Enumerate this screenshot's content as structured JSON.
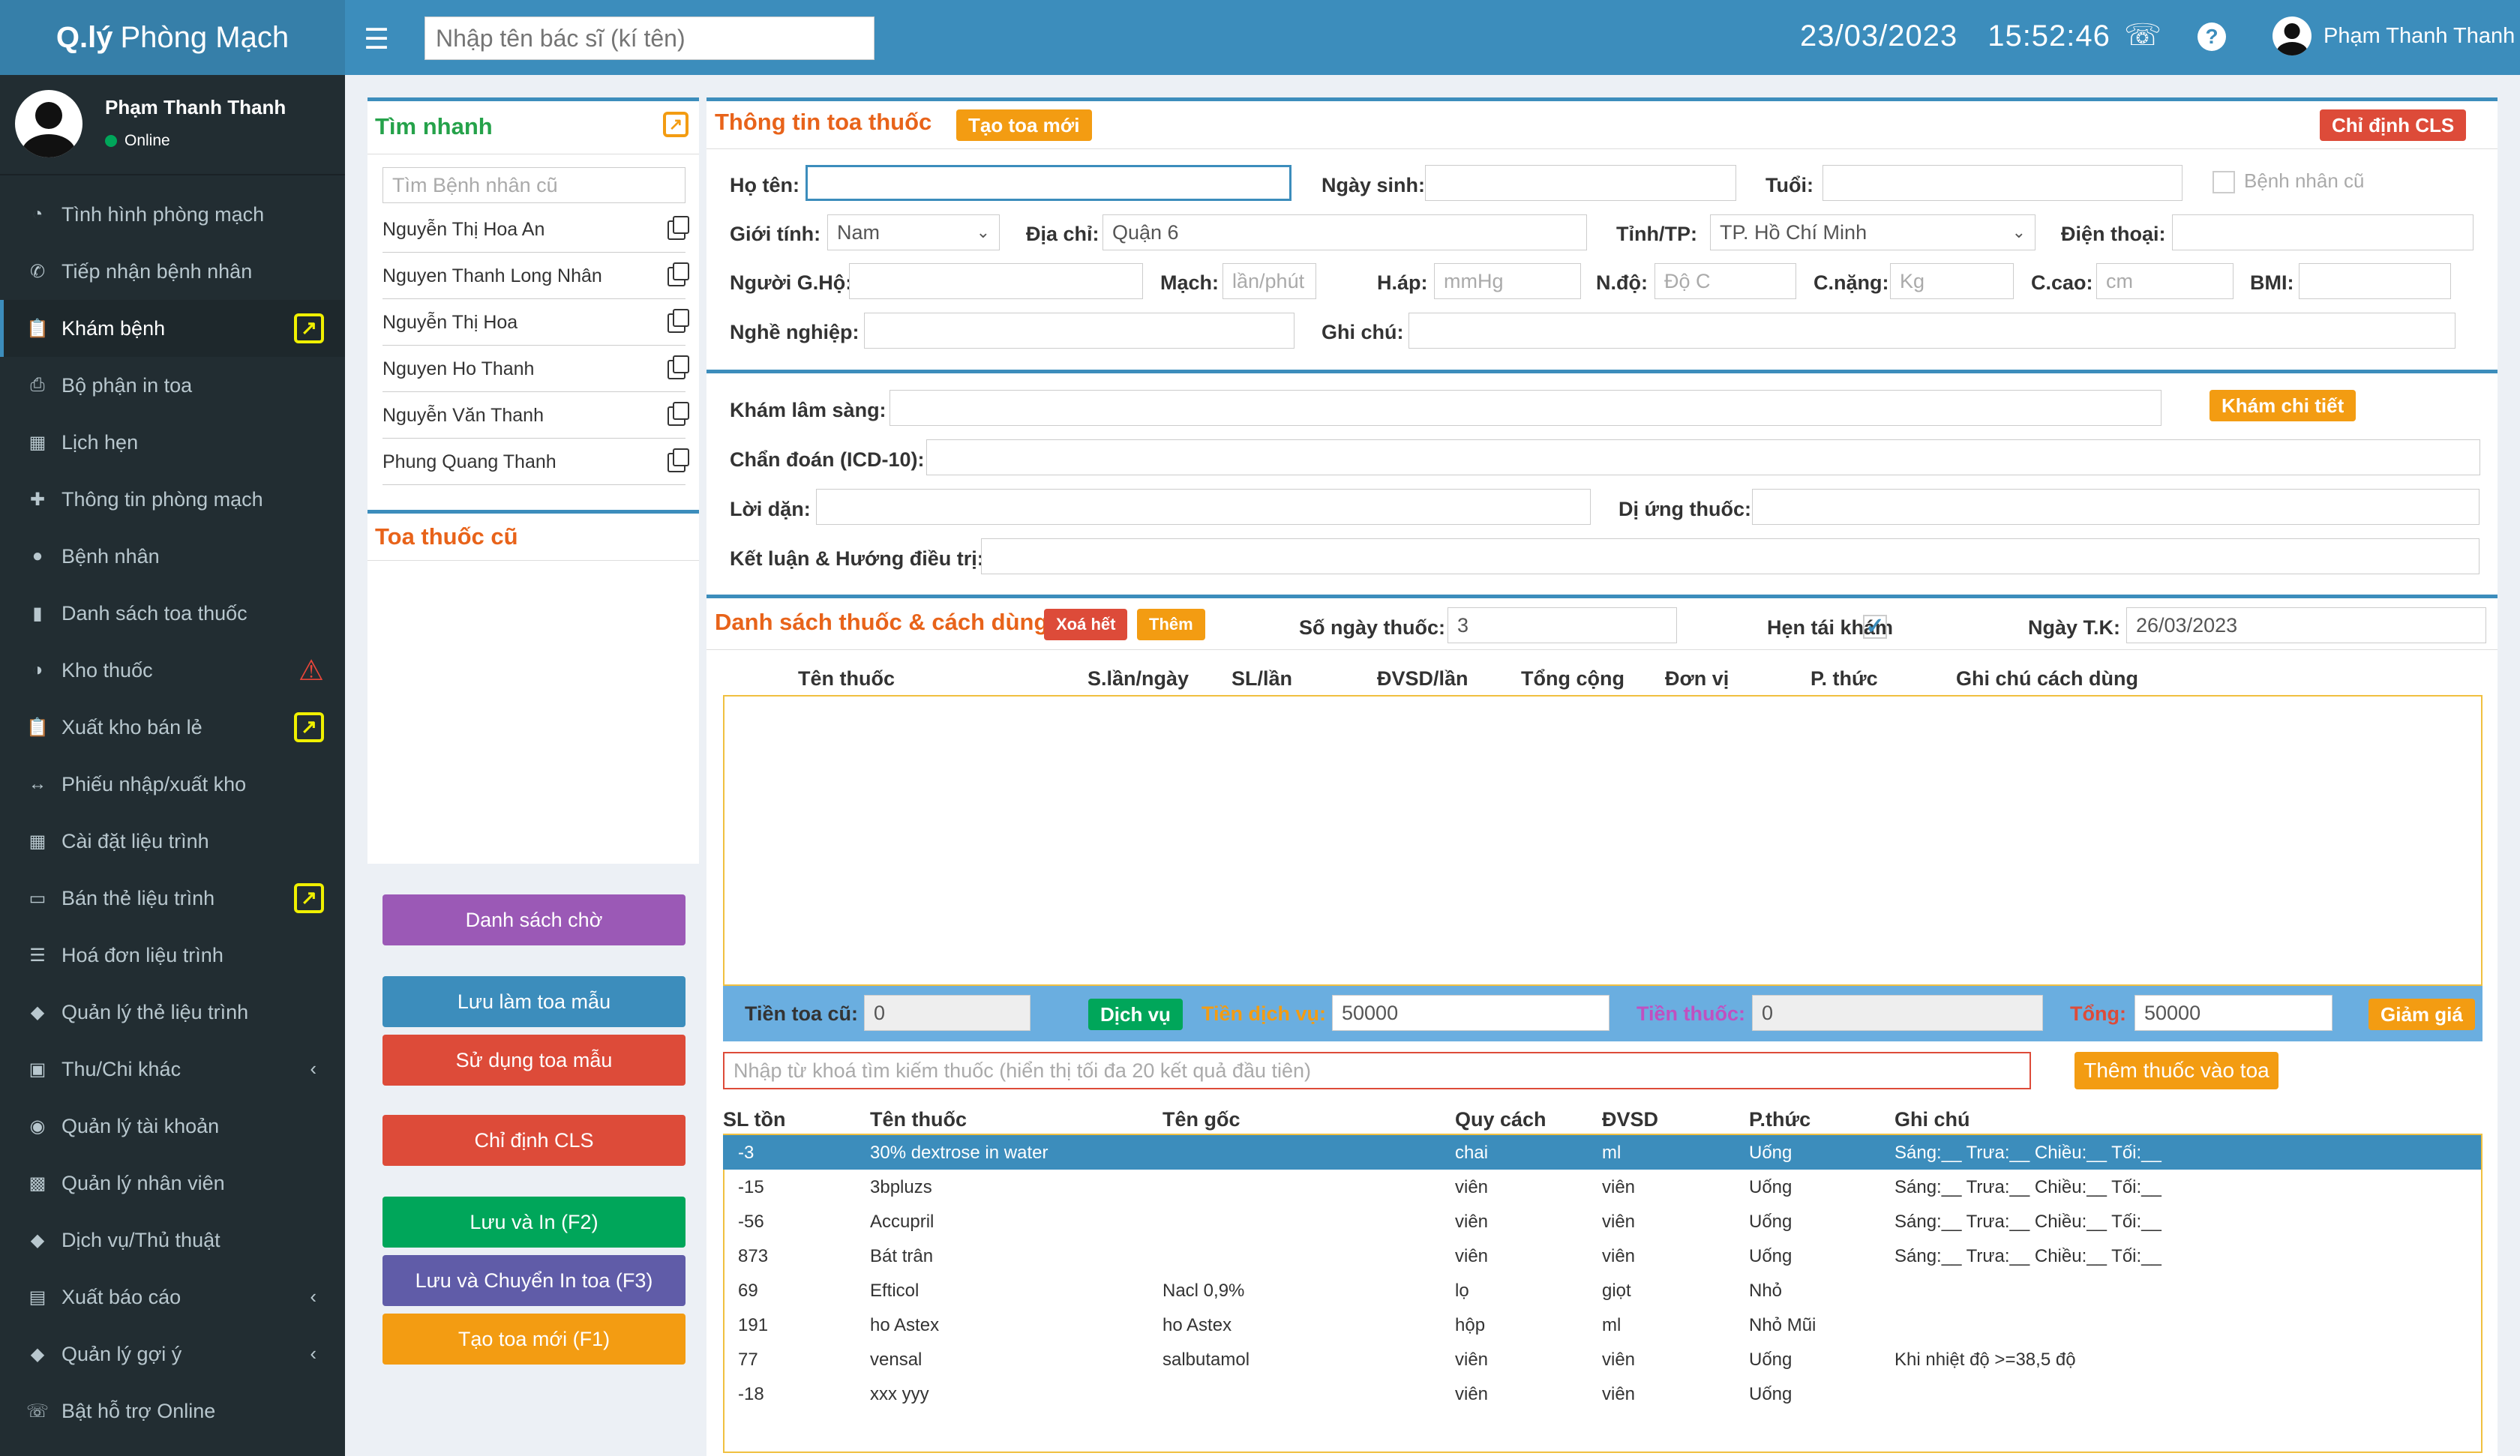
{
  "app": {
    "logo_bold": "Q.lý",
    "logo_rest": "Phòng Mạch"
  },
  "header": {
    "doctor_search_placeholder": "Nhập tên bác sĩ (kí tên)",
    "date": "23/03/2023",
    "time": "15:52:46",
    "user_name": "Phạm Thanh Thanh"
  },
  "sidebar": {
    "user_name": "Phạm Thanh Thanh",
    "status": "Online",
    "items": [
      {
        "label": "Tình hình phòng mạch",
        "icon": "dashboard-icon"
      },
      {
        "label": "Tiếp nhận bệnh nhân",
        "icon": "reception-icon"
      },
      {
        "label": "Khám bệnh",
        "icon": "clipboard-icon"
      },
      {
        "label": "Bộ phận in toa",
        "icon": "print-icon"
      },
      {
        "label": "Lịch hẹn",
        "icon": "calendar-icon"
      },
      {
        "label": "Thông tin phòng mạch",
        "icon": "plus-icon"
      },
      {
        "label": "Bệnh nhân",
        "icon": "user-icon"
      },
      {
        "label": "Danh sách toa thuốc",
        "icon": "file-icon"
      },
      {
        "label": "Kho thuốc",
        "icon": "pills-icon"
      },
      {
        "label": "Xuất kho bán lẻ",
        "icon": "clipboard-icon"
      },
      {
        "label": "Phiếu nhập/xuất kho",
        "icon": "arrows-icon"
      },
      {
        "label": "Cài đặt liệu trình",
        "icon": "grid-icon"
      },
      {
        "label": "Bán thẻ liệu trình",
        "icon": "card-icon"
      },
      {
        "label": "Hoá đơn liệu trình",
        "icon": "list-icon"
      },
      {
        "label": "Quản lý thẻ liệu trình",
        "icon": "tag-icon"
      },
      {
        "label": "Thu/Chi khác",
        "icon": "money-icon"
      },
      {
        "label": "Quản lý tài khoản",
        "icon": "users-icon"
      },
      {
        "label": "Quản lý nhân viên",
        "icon": "briefcase-icon"
      },
      {
        "label": "Dịch vụ/Thủ thuật",
        "icon": "tag-icon"
      },
      {
        "label": "Xuất báo cáo",
        "icon": "excel-icon"
      },
      {
        "label": "Quản lý gợi ý",
        "icon": "tag-icon"
      },
      {
        "label": "Bật hỗ trợ Online",
        "icon": "phone-icon"
      }
    ]
  },
  "quick": {
    "title": "Tìm nhanh",
    "search_placeholder": "Tìm Bệnh nhân cũ",
    "patients": [
      "Nguyễn Thị Hoa An",
      "Nguyen Thanh Long Nhân",
      "Nguyễn Thị Hoa",
      "Nguyen Ho Thanh",
      "Nguyễn Văn Thanh",
      "Phung Quang Thanh"
    ],
    "old_rx_title": "Toa thuốc cũ"
  },
  "actions": {
    "waiting_list": "Danh sách chờ",
    "save_template": "Lưu làm toa mẫu",
    "use_template": "Sử dụng toa mẫu",
    "cls": "Chỉ định CLS",
    "save_print": "Lưu và In (F2)",
    "save_transfer": "Lưu và Chuyển In toa (F3)",
    "new_rx": "Tạo toa mới (F1)"
  },
  "rx_info": {
    "title": "Thông tin toa thuốc",
    "new_button": "Tạo toa mới",
    "cls_button": "Chỉ định CLS",
    "labels": {
      "name": "Họ tên:",
      "dob": "Ngày sinh:",
      "age": "Tuổi:",
      "old_patient": "Bệnh nhân cũ",
      "gender": "Giới tính:",
      "address": "Địa chỉ:",
      "province": "Tỉnh/TP:",
      "phone": "Điện thoại:",
      "guardian": "Người G.Hộ:",
      "pulse": "Mạch:",
      "bp": "H.áp:",
      "temp": "N.độ:",
      "weight": "C.nặng:",
      "height": "C.cao:",
      "bmi": "BMI:",
      "job": "Nghề nghiệp:",
      "note": "Ghi chú:"
    },
    "values": {
      "gender": "Nam",
      "address": "Quận 6",
      "province": "TP. Hồ Chí Minh"
    },
    "placeholders": {
      "pulse": "lần/phút",
      "bp": "mmHg",
      "temp": "Độ C",
      "weight": "Kg",
      "height": "cm"
    }
  },
  "exam": {
    "clinical": "Khám lâm sàng:",
    "detail_button": "Khám chi tiết",
    "diagnosis": "Chẩn đoán (ICD-10):",
    "advice": "Lời dặn:",
    "allergy": "Dị ứng thuốc:",
    "conclusion": "Kết luận & Hướng điều trị:"
  },
  "drugs": {
    "title": "Danh sách thuốc & cách dùng",
    "clear_button": "Xoá hết",
    "add_button": "Thêm",
    "days_label": "Số ngày thuốc:",
    "days_value": "3",
    "recheck_label": "Hẹn tái khám",
    "recheck_date_label": "Ngày T.K:",
    "recheck_date": "26/03/2023",
    "columns": [
      "Tên thuốc",
      "S.lần/ngày",
      "SL/lần",
      "ĐVSD/lần",
      "Tổng cộng",
      "Đơn vị",
      "P. thức",
      "Ghi chú cách dùng"
    ]
  },
  "totals": {
    "old_label": "Tiền toa cũ:",
    "old_value": "0",
    "service_button": "Dịch vụ",
    "service_label": "Tiền dịch vụ:",
    "service_value": "50000",
    "drug_label": "Tiền thuốc:",
    "drug_value": "0",
    "total_label": "Tổng:",
    "total_value": "50000",
    "discount_button": "Giảm giá"
  },
  "search": {
    "placeholder": "Nhập từ khoá tìm kiếm thuốc (hiển thị tối đa 20 kết quả đầu tiên)",
    "add_button": "Thêm thuốc vào toa"
  },
  "results": {
    "columns": [
      "SL tồn",
      "Tên thuốc",
      "Tên gốc",
      "Quy cách",
      "ĐVSD",
      "P.thức",
      "Ghi chú"
    ],
    "rows": [
      [
        "-3",
        "30% dextrose in water",
        "",
        "chai",
        "ml",
        "Uống",
        "Sáng:__ Trưa:__ Chiều:__ Tối:__"
      ],
      [
        "-15",
        "3bpluzs",
        "",
        "viên",
        "viên",
        "Uống",
        "Sáng:__ Trưa:__ Chiều:__ Tối:__"
      ],
      [
        "-56",
        "Accupril",
        "",
        "viên",
        "viên",
        "Uống",
        "Sáng:__ Trưa:__ Chiều:__ Tối:__"
      ],
      [
        "873",
        "Bát trân",
        "",
        "viên",
        "viên",
        "Uống",
        "Sáng:__ Trưa:__ Chiều:__ Tối:__"
      ],
      [
        "69",
        "Efticol",
        "Nacl 0,9%",
        "lọ",
        "giọt",
        "Nhỏ",
        ""
      ],
      [
        "191",
        "ho Astex",
        "ho Astex",
        "hộp",
        "ml",
        "Nhỏ Mũi",
        ""
      ],
      [
        "77",
        "vensal",
        "salbutamol",
        "viên",
        "viên",
        "Uống",
        "Khi nhiệt độ >=38,5 độ"
      ],
      [
        "-18",
        "xxx yyy",
        "",
        "viên",
        "viên",
        "Uống",
        ""
      ]
    ]
  }
}
